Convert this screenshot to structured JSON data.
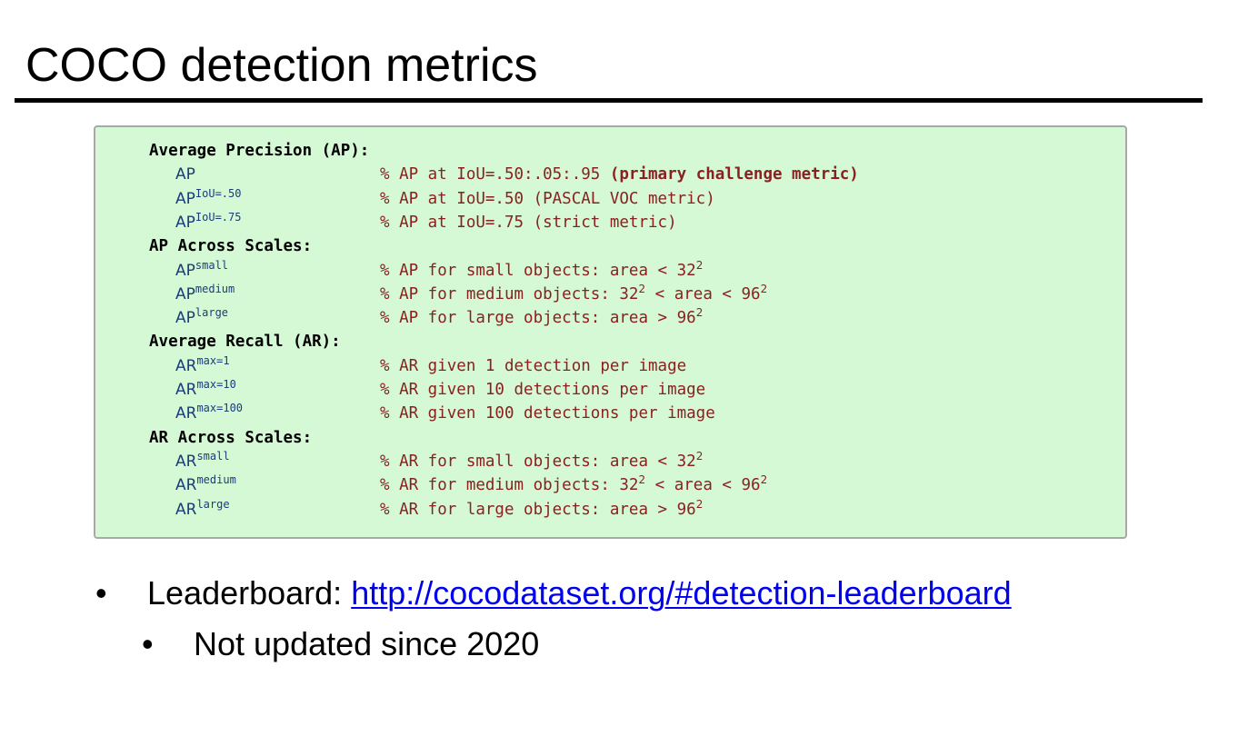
{
  "slide": {
    "title": "COCO detection metrics"
  },
  "metrics_box": {
    "sections": [
      {
        "heading": "Average Precision (AP):",
        "metrics": [
          {
            "name": "AP",
            "sup": "",
            "desc_parts": [
              {
                "text": "% AP at IoU=.50:.05:.95 "
              },
              {
                "text": "(primary challenge metric)",
                "bold": true
              }
            ]
          },
          {
            "name": "AP",
            "sup": "IoU=.50",
            "desc_parts": [
              {
                "text": "% AP at IoU=.50 (PASCAL VOC metric)"
              }
            ]
          },
          {
            "name": "AP",
            "sup": "IoU=.75",
            "desc_parts": [
              {
                "text": "% AP at IoU=.75 (strict metric)"
              }
            ]
          }
        ]
      },
      {
        "heading": "AP Across Scales:",
        "metrics": [
          {
            "name": "AP",
            "sup": "small",
            "desc_parts": [
              {
                "text": "% AP for small objects: area < 32"
              },
              {
                "text": "2",
                "sup": true
              }
            ]
          },
          {
            "name": "AP",
            "sup": "medium",
            "desc_parts": [
              {
                "text": "% AP for medium objects: 32"
              },
              {
                "text": "2",
                "sup": true
              },
              {
                "text": " < area < 96"
              },
              {
                "text": "2",
                "sup": true
              }
            ]
          },
          {
            "name": "AP",
            "sup": "large",
            "desc_parts": [
              {
                "text": "% AP for large objects: area > 96"
              },
              {
                "text": "2",
                "sup": true
              }
            ]
          }
        ]
      },
      {
        "heading": "Average Recall (AR):",
        "metrics": [
          {
            "name": "AR",
            "sup": "max=1",
            "desc_parts": [
              {
                "text": "% AR given 1 detection per image"
              }
            ]
          },
          {
            "name": "AR",
            "sup": "max=10",
            "desc_parts": [
              {
                "text": "% AR given 10 detections per image"
              }
            ]
          },
          {
            "name": "AR",
            "sup": "max=100",
            "desc_parts": [
              {
                "text": "% AR given 100 detections per image"
              }
            ]
          }
        ]
      },
      {
        "heading": "AR Across Scales:",
        "metrics": [
          {
            "name": "AR",
            "sup": "small",
            "desc_parts": [
              {
                "text": "% AR for small objects: area < 32"
              },
              {
                "text": "2",
                "sup": true
              }
            ]
          },
          {
            "name": "AR",
            "sup": "medium",
            "desc_parts": [
              {
                "text": "% AR for medium objects: 32"
              },
              {
                "text": "2",
                "sup": true
              },
              {
                "text": " < area < 96"
              },
              {
                "text": "2",
                "sup": true
              }
            ]
          },
          {
            "name": "AR",
            "sup": "large",
            "desc_parts": [
              {
                "text": "% AR for large objects: area > 96"
              },
              {
                "text": "2",
                "sup": true
              }
            ]
          }
        ]
      }
    ]
  },
  "bullets": {
    "glyph": "•",
    "leaderboard_label": "Leaderboard: ",
    "leaderboard_link": "http://cocodataset.org/#detection-leaderboard ",
    "sub_item": "Not updated since 2020"
  },
  "colors": {
    "box_background": "#d5f8d5",
    "metric_name": "#1a3d7a",
    "metric_desc": "#8b2020",
    "link": "#0000ee"
  }
}
